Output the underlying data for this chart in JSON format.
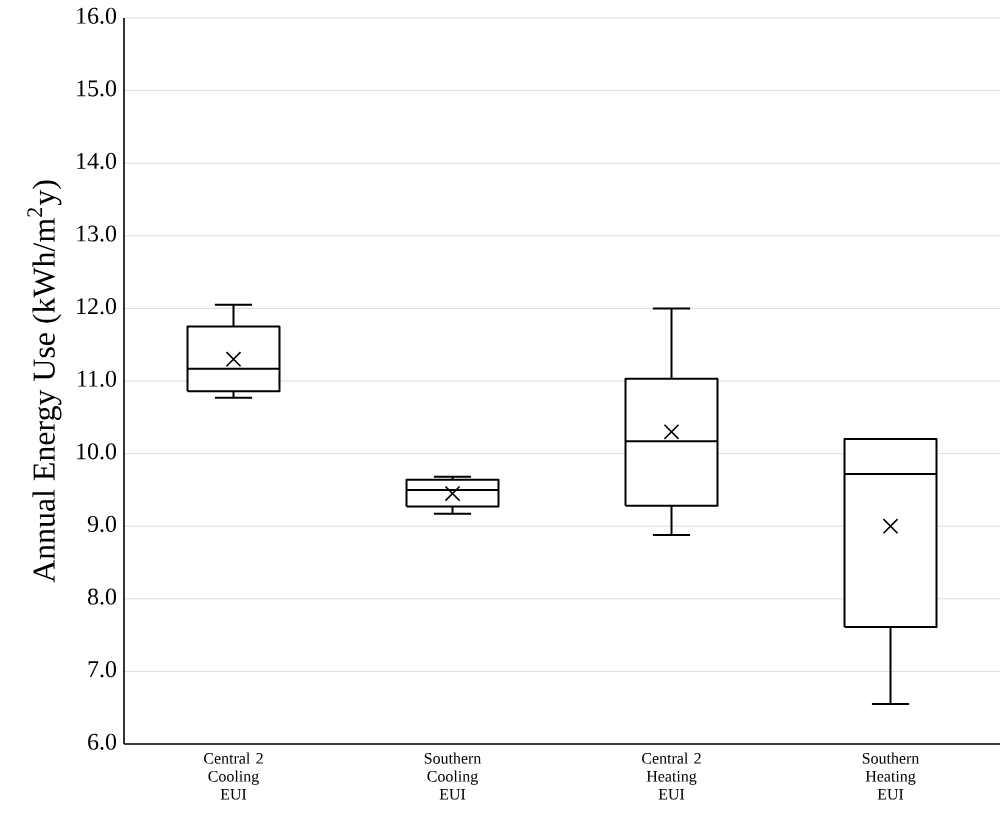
{
  "chart_data": {
    "type": "box",
    "ylabel": "Annual Energy Use (kWh/m$^{2}$y)",
    "categories": [
      "Central 2 Cooling EUI",
      "Southern Cooling EUI",
      "Central 2 Heating EUI",
      "Southern Heating EUI"
    ],
    "boxes": [
      {
        "low": 10.77,
        "q1": 10.86,
        "median": 11.17,
        "q3": 11.75,
        "high": 12.05,
        "mean": 11.3
      },
      {
        "low": 9.17,
        "q1": 9.27,
        "median": 9.5,
        "q3": 9.64,
        "high": 9.68,
        "mean": 9.45
      },
      {
        "low": 8.88,
        "q1": 9.28,
        "median": 10.17,
        "q3": 11.03,
        "high": 12.0,
        "mean": 10.3
      },
      {
        "low": 6.55,
        "q1": 7.61,
        "median": 9.72,
        "q3": 10.2,
        "high": 10.2,
        "mean": 9.0
      }
    ],
    "color": "#000000",
    "ylim": [
      6,
      16
    ],
    "yticks": [
      {
        "value": 6,
        "label": "6.0"
      },
      {
        "value": 7,
        "label": "7.0"
      },
      {
        "value": 8,
        "label": "8.0"
      },
      {
        "value": 9,
        "label": "9.0"
      },
      {
        "value": 10,
        "label": "10.0"
      },
      {
        "value": 11,
        "label": "11.0"
      },
      {
        "value": 12,
        "label": "12.0"
      },
      {
        "value": 13,
        "label": "13.0"
      },
      {
        "value": 14,
        "label": "14.0"
      },
      {
        "value": 15,
        "label": "15.0"
      },
      {
        "value": 16,
        "label": "16.0"
      }
    ],
    "grid": "y"
  }
}
